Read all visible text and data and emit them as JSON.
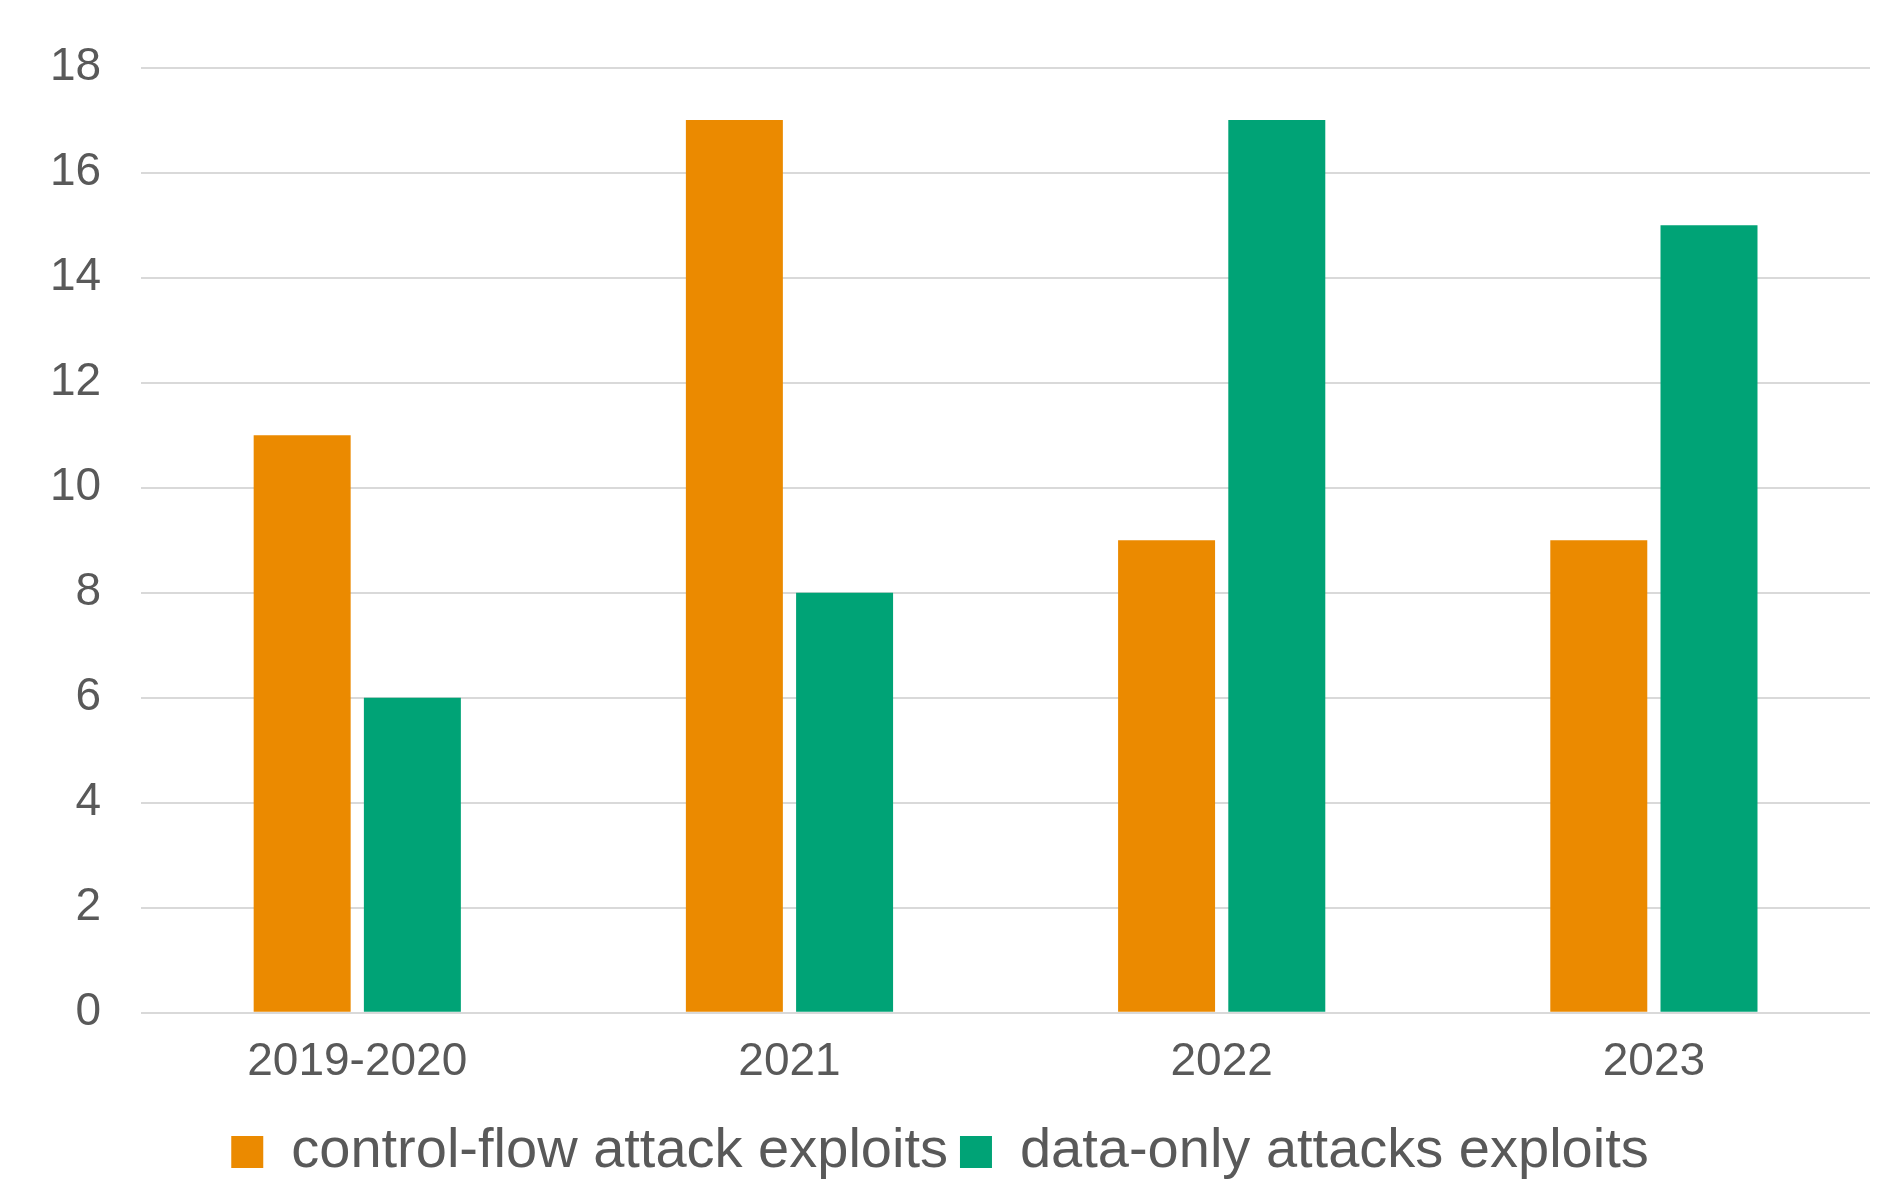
{
  "chart_data": {
    "type": "bar",
    "categories": [
      "2019-2020",
      "2021",
      "2022",
      "2023"
    ],
    "series": [
      {
        "name": "control-flow attack exploits",
        "color": "#eb8a00",
        "values": [
          11,
          17,
          9,
          9
        ]
      },
      {
        "name": "data-only attacks exploits",
        "color": "#00a376",
        "values": [
          6,
          8,
          17,
          15
        ]
      }
    ],
    "ylim": [
      0,
      18
    ],
    "yticks": [
      0,
      2,
      4,
      6,
      8,
      10,
      12,
      14,
      16,
      18
    ],
    "grid": "y",
    "legend": "bottom"
  }
}
